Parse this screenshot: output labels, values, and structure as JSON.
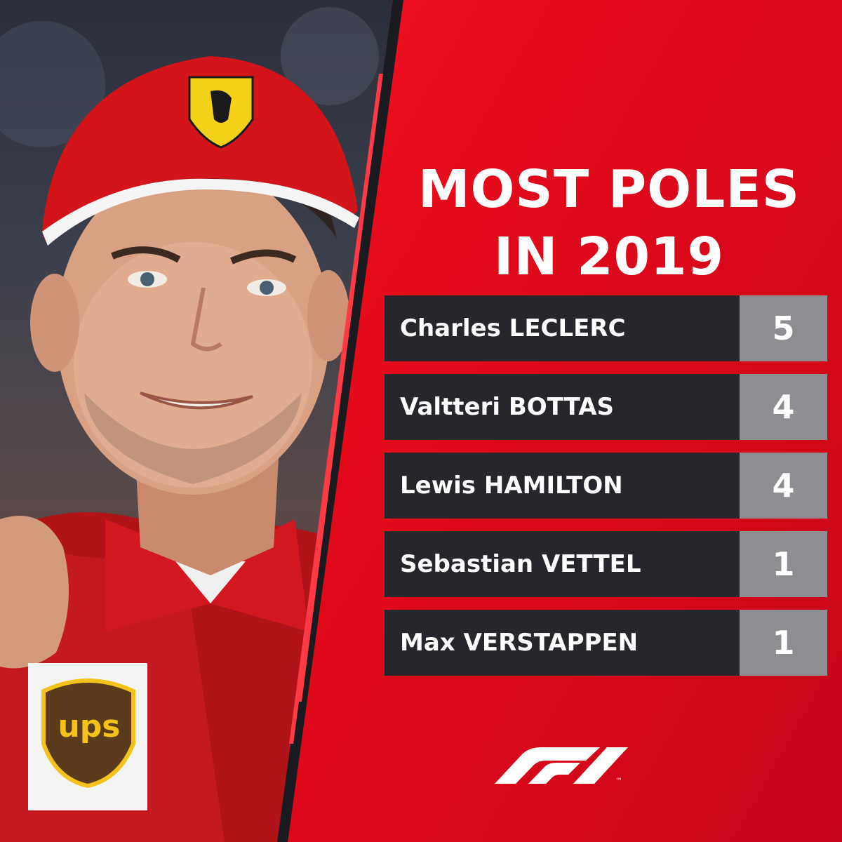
{
  "title": {
    "line1": "MOST POLES",
    "line2": "IN 2019"
  },
  "standings": [
    {
      "driver": "Charles LECLERC",
      "poles": "5"
    },
    {
      "driver": "Valtteri BOTTAS",
      "poles": "4"
    },
    {
      "driver": "Lewis HAMILTON",
      "poles": "4"
    },
    {
      "driver": "Sebastian VETTEL",
      "poles": "1"
    },
    {
      "driver": "Max VERSTAPPEN",
      "poles": "1"
    }
  ],
  "logo": {
    "icon": "f1-logo-icon",
    "text": "F1",
    "trademark": "™"
  },
  "photo": {
    "description_icon": "driver-photo",
    "sponsor_text": "ups"
  },
  "colors": {
    "panel_red": "#e10717",
    "row_dark": "#26262c",
    "value_grey": "#8d8d92",
    "text": "#ffffff"
  }
}
